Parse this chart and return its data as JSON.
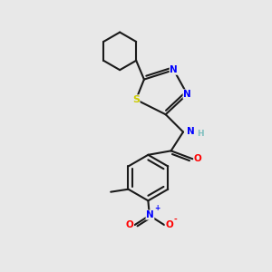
{
  "background_color": "#e8e8e8",
  "figsize": [
    3.0,
    3.0
  ],
  "dpi": 100,
  "line_color": "#1a1a1a",
  "line_width": 1.5,
  "bond_width": 1.5,
  "atom_colors": {
    "N": "#0000ff",
    "O": "#ff0000",
    "S": "#cccc00",
    "C": "#1a1a1a",
    "H": "#7fbfbf"
  },
  "font_size": 7.5
}
